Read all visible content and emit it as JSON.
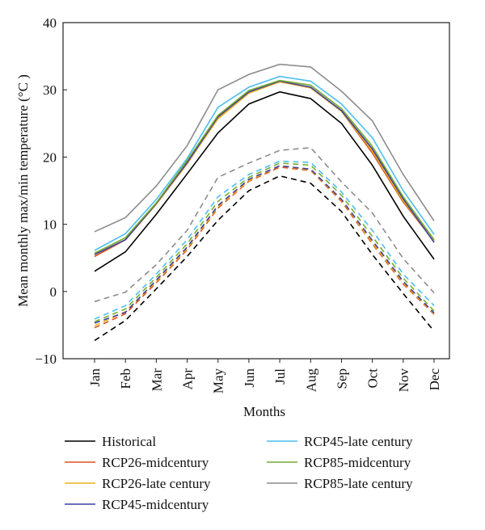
{
  "chart_data": {
    "type": "line",
    "xlabel": "Months",
    "ylabel": "Mean monthly max/min temperature (°C )",
    "ylim": [
      -10,
      40
    ],
    "yticks": [
      -10,
      0,
      10,
      20,
      30,
      40
    ],
    "categories": [
      "Jan",
      "Feb",
      "Mar",
      "Apr",
      "May",
      "Jun",
      "Jul",
      "Aug",
      "Sep",
      "Oct",
      "Nov",
      "Dec"
    ],
    "legend_position": "bottom",
    "series": [
      {
        "name": "Historical",
        "color": "#000000",
        "max": [
          3.0,
          5.9,
          11.5,
          17.5,
          23.6,
          27.9,
          29.7,
          28.7,
          25.0,
          18.8,
          11.2,
          4.8
        ],
        "min": [
          -7.3,
          -4.3,
          0.4,
          5.2,
          10.6,
          15.0,
          17.2,
          16.1,
          11.9,
          5.5,
          -0.3,
          -5.9
        ]
      },
      {
        "name": "RCP26-midcentury",
        "color": "#d9531e",
        "max": [
          5.2,
          7.7,
          13.0,
          19.0,
          25.8,
          29.6,
          31.2,
          30.3,
          26.8,
          20.6,
          13.3,
          7.5
        ],
        "min": [
          -5.4,
          -3.3,
          1.3,
          6.2,
          12.4,
          16.4,
          18.5,
          18.0,
          13.4,
          7.1,
          1.1,
          -3.4
        ]
      },
      {
        "name": "RCP26-late century",
        "color": "#edb120",
        "max": [
          5.5,
          7.7,
          13.0,
          19.1,
          25.7,
          29.5,
          31.2,
          30.3,
          26.8,
          20.9,
          13.5,
          7.6
        ],
        "min": [
          -5.1,
          -3.0,
          1.5,
          6.4,
          12.6,
          16.5,
          18.7,
          18.1,
          13.6,
          7.3,
          1.3,
          -3.3
        ]
      },
      {
        "name": "RCP45-midcentury",
        "color": "#3f3f9f",
        "max": [
          5.5,
          7.7,
          13.1,
          19.2,
          26.0,
          29.7,
          31.3,
          30.4,
          26.9,
          21.2,
          13.8,
          7.3
        ],
        "min": [
          -4.7,
          -3.1,
          1.7,
          6.6,
          12.8,
          16.7,
          18.7,
          18.2,
          13.7,
          7.6,
          1.5,
          -3.2
        ]
      },
      {
        "name": "RCP45-late century",
        "color": "#4dbeee",
        "max": [
          6.1,
          8.6,
          13.7,
          19.8,
          27.4,
          30.4,
          32.0,
          31.3,
          27.9,
          22.9,
          15.0,
          8.5
        ],
        "min": [
          -4.1,
          -2.1,
          2.6,
          7.7,
          14.1,
          17.4,
          19.4,
          19.2,
          14.8,
          9.1,
          2.6,
          -2.1
        ]
      },
      {
        "name": "RCP85-midcentury",
        "color": "#77ac30",
        "max": [
          5.7,
          8.0,
          13.2,
          19.5,
          26.2,
          29.9,
          31.4,
          30.7,
          27.2,
          21.6,
          14.1,
          7.7
        ],
        "min": [
          -4.5,
          -2.6,
          2.1,
          7.1,
          13.4,
          17.0,
          19.1,
          18.8,
          14.3,
          8.2,
          2.0,
          -2.9
        ]
      },
      {
        "name": "RCP85-late century",
        "color": "#8c8c8c",
        "max": [
          8.9,
          11.0,
          15.7,
          21.7,
          30.0,
          32.3,
          33.8,
          33.4,
          29.8,
          25.4,
          17.4,
          10.5
        ],
        "min": [
          -1.5,
          -0.1,
          4.0,
          9.1,
          17.0,
          19.1,
          21.0,
          21.4,
          16.3,
          11.7,
          4.9,
          -0.2
        ]
      }
    ]
  }
}
